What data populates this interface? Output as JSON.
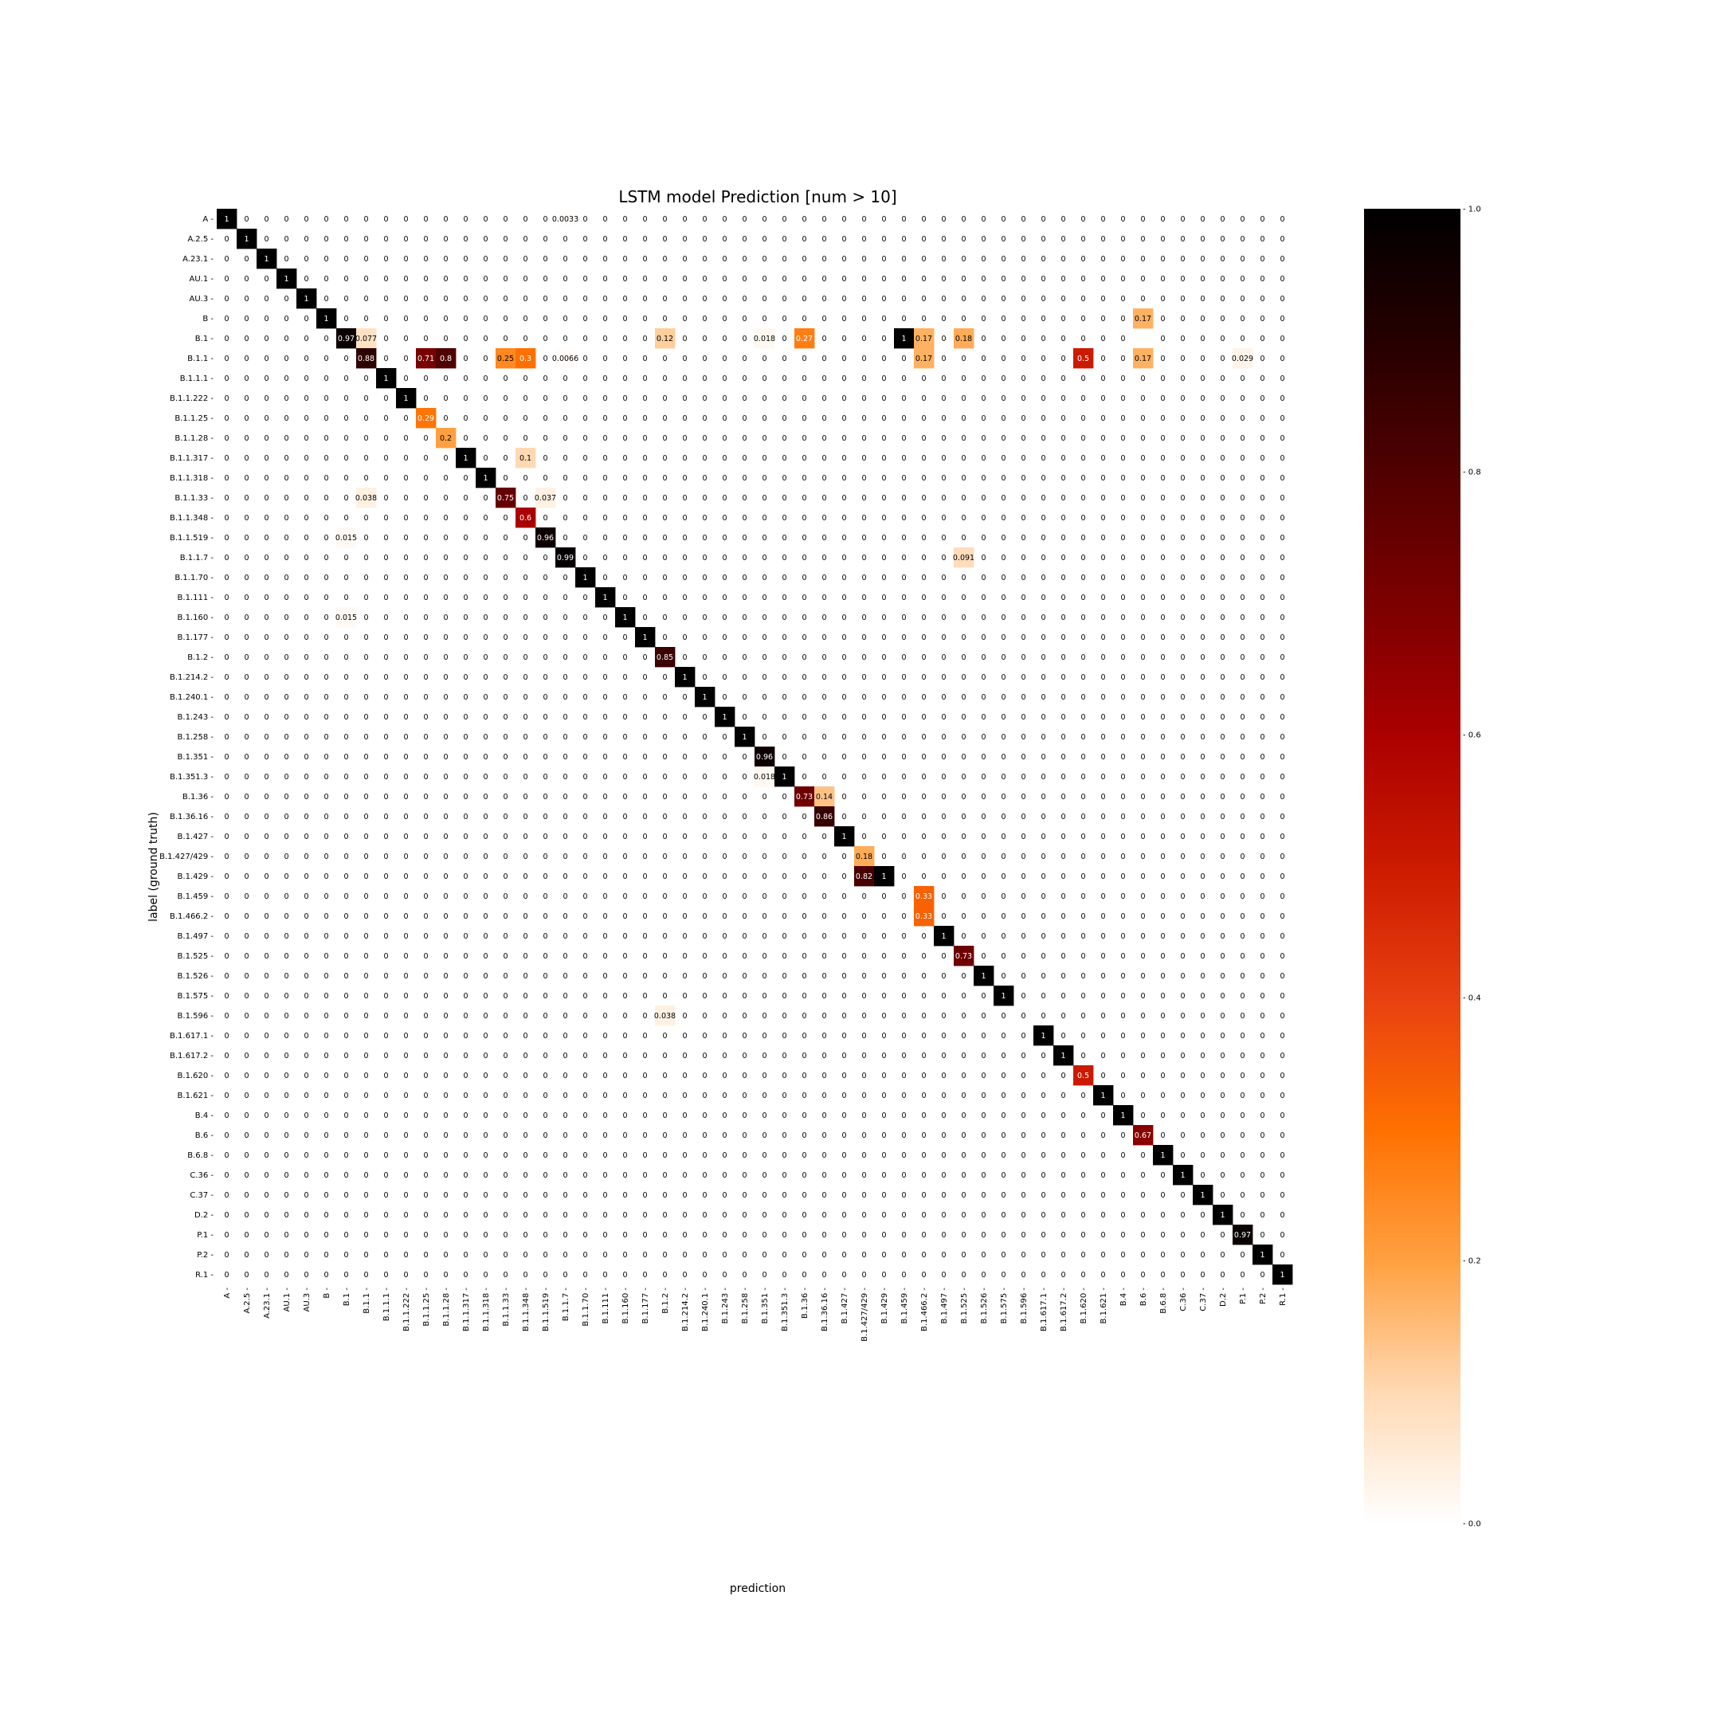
{
  "chart_data": {
    "type": "heatmap",
    "title": "LSTM model Prediction [num > 10]",
    "xlabel": "prediction",
    "ylabel": "label (ground truth)",
    "labels": [
      "A",
      "A.2.5",
      "A.23.1",
      "AU.1",
      "AU.3",
      "B",
      "B.1",
      "B.1.1",
      "B.1.1.1",
      "B.1.1.222",
      "B.1.1.25",
      "B.1.1.28",
      "B.1.1.317",
      "B.1.1.318",
      "B.1.1.33",
      "B.1.1.348",
      "B.1.1.519",
      "B.1.1.7",
      "B.1.1.70",
      "B.1.111",
      "B.1.160",
      "B.1.177",
      "B.1.2",
      "B.1.214.2",
      "B.1.240.1",
      "B.1.243",
      "B.1.258",
      "B.1.351",
      "B.1.351.3",
      "B.1.36",
      "B.1.36.16",
      "B.1.427",
      "B.1.427/429",
      "B.1.429",
      "B.1.459",
      "B.1.466.2",
      "B.1.497",
      "B.1.525",
      "B.1.526",
      "B.1.575",
      "B.1.596",
      "B.1.617.1",
      "B.1.617.2",
      "B.1.620",
      "B.1.621",
      "B.4",
      "B.6",
      "B.6.8",
      "C.36",
      "C.37",
      "D.2",
      "P.1",
      "P.2",
      "R.1"
    ],
    "nonzero": [
      [
        0,
        0,
        "1"
      ],
      [
        0,
        17,
        "0.0033"
      ],
      [
        1,
        1,
        "1"
      ],
      [
        2,
        2,
        "1"
      ],
      [
        3,
        3,
        "1"
      ],
      [
        4,
        4,
        "1"
      ],
      [
        5,
        5,
        "1"
      ],
      [
        5,
        46,
        "0.17"
      ],
      [
        6,
        6,
        "0.97"
      ],
      [
        6,
        7,
        "0.077"
      ],
      [
        6,
        22,
        "0.12"
      ],
      [
        6,
        27,
        "0.018"
      ],
      [
        6,
        29,
        "0.27"
      ],
      [
        6,
        34,
        "1"
      ],
      [
        6,
        35,
        "0.17"
      ],
      [
        6,
        37,
        "0.18"
      ],
      [
        7,
        7,
        "0.88"
      ],
      [
        7,
        10,
        "0.71"
      ],
      [
        7,
        11,
        "0.8"
      ],
      [
        7,
        14,
        "0.25"
      ],
      [
        7,
        15,
        "0.3"
      ],
      [
        7,
        17,
        "0.0066"
      ],
      [
        7,
        35,
        "0.17"
      ],
      [
        7,
        43,
        "0.5"
      ],
      [
        7,
        46,
        "0.17"
      ],
      [
        7,
        51,
        "0.029"
      ],
      [
        8,
        8,
        "1"
      ],
      [
        9,
        9,
        "1"
      ],
      [
        10,
        10,
        "0.29"
      ],
      [
        11,
        11,
        "0.2"
      ],
      [
        12,
        12,
        "1"
      ],
      [
        12,
        15,
        "0.1"
      ],
      [
        13,
        13,
        "1"
      ],
      [
        14,
        7,
        "0.038"
      ],
      [
        14,
        14,
        "0.75"
      ],
      [
        14,
        16,
        "0.037"
      ],
      [
        15,
        15,
        "0.6"
      ],
      [
        16,
        6,
        "0.015"
      ],
      [
        16,
        16,
        "0.96"
      ],
      [
        17,
        17,
        "0.99"
      ],
      [
        17,
        37,
        "0.091"
      ],
      [
        18,
        18,
        "1"
      ],
      [
        19,
        19,
        "1"
      ],
      [
        20,
        6,
        "0.015"
      ],
      [
        20,
        20,
        "1"
      ],
      [
        21,
        21,
        "1"
      ],
      [
        22,
        22,
        "0.85"
      ],
      [
        23,
        23,
        "1"
      ],
      [
        24,
        24,
        "1"
      ],
      [
        25,
        25,
        "1"
      ],
      [
        26,
        26,
        "1"
      ],
      [
        27,
        27,
        "0.96"
      ],
      [
        28,
        27,
        "0.018"
      ],
      [
        28,
        28,
        "1"
      ],
      [
        29,
        29,
        "0.73"
      ],
      [
        29,
        30,
        "0.14"
      ],
      [
        30,
        30,
        "0.86"
      ],
      [
        31,
        31,
        "1"
      ],
      [
        32,
        32,
        "0.18"
      ],
      [
        33,
        32,
        "0.82"
      ],
      [
        33,
        33,
        "1"
      ],
      [
        34,
        35,
        "0.33"
      ],
      [
        35,
        35,
        "0.33"
      ],
      [
        36,
        36,
        "1"
      ],
      [
        37,
        37,
        "0.73"
      ],
      [
        38,
        38,
        "1"
      ],
      [
        39,
        39,
        "1"
      ],
      [
        40,
        22,
        "0.038"
      ],
      [
        41,
        41,
        "1"
      ],
      [
        42,
        42,
        "1"
      ],
      [
        43,
        43,
        "0.5"
      ],
      [
        44,
        44,
        "1"
      ],
      [
        45,
        45,
        "1"
      ],
      [
        46,
        46,
        "0.67"
      ],
      [
        47,
        47,
        "1"
      ],
      [
        48,
        48,
        "1"
      ],
      [
        49,
        49,
        "1"
      ],
      [
        50,
        50,
        "1"
      ],
      [
        51,
        51,
        "0.97"
      ],
      [
        52,
        52,
        "1"
      ],
      [
        53,
        53,
        "1"
      ]
    ],
    "empty_cells": [
      [
        6,
        46
      ],
      [
        10,
        10
      ]
    ],
    "zero_text": "0",
    "colormap": "gist_heat_r",
    "colorbar": {
      "min": 0.0,
      "max": 1.0,
      "ticks": [
        "0.0",
        "0.2",
        "0.4",
        "0.6",
        "0.8",
        "1.0"
      ]
    },
    "tick_suffix": " -"
  },
  "colors": {
    "high": "#000000",
    "mid": "#c00000",
    "low": "#ffffff",
    "accent": "#ff8000"
  }
}
